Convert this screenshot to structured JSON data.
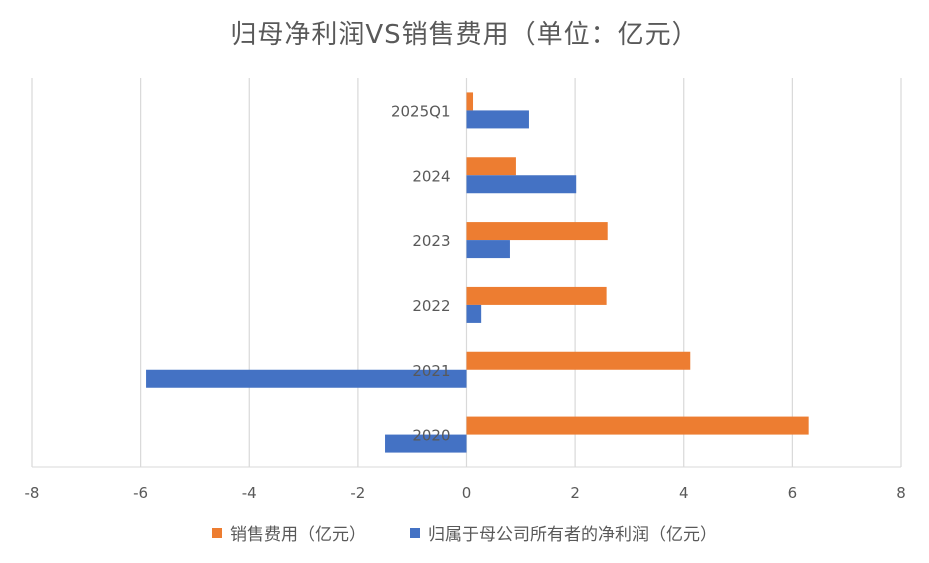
{
  "chart_data": {
    "type": "bar",
    "orientation": "horizontal",
    "title": "归母净利润VS销售费用（单位：亿元）",
    "categories": [
      "2020",
      "2021",
      "2022",
      "2023",
      "2024",
      "2025Q1"
    ],
    "series": [
      {
        "name": "销售费用（亿元）",
        "color": "#ED7D31",
        "values": [
          6.3,
          4.12,
          2.58,
          2.6,
          0.91,
          0.12
        ]
      },
      {
        "name": "归属于母公司所有者的净利润（亿元）",
        "color": "#4472C4",
        "values": [
          -1.5,
          -5.9,
          0.27,
          0.8,
          2.02,
          1.15
        ]
      }
    ],
    "xlim": [
      -8,
      8
    ],
    "x_ticks": [
      "-8",
      "-6",
      "-4",
      "-2",
      "0",
      "2",
      "4",
      "6",
      "8"
    ],
    "grid": true,
    "legend_position": "bottom"
  }
}
